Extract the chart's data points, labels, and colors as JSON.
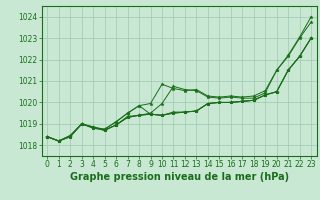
{
  "background_color": "#c8e8d4",
  "grid_color": "#a0c8b0",
  "line_color": "#1a6e1a",
  "marker_color": "#1a6e1a",
  "xlabel": "Graphe pression niveau de la mer (hPa)",
  "xlabel_fontsize": 7,
  "tick_fontsize": 5.5,
  "xlim": [
    -0.5,
    23.5
  ],
  "ylim": [
    1017.5,
    1024.5
  ],
  "yticks": [
    1018,
    1019,
    1020,
    1021,
    1022,
    1023,
    1024
  ],
  "xticks": [
    0,
    1,
    2,
    3,
    4,
    5,
    6,
    7,
    8,
    9,
    10,
    11,
    12,
    13,
    14,
    15,
    16,
    17,
    18,
    19,
    20,
    21,
    22,
    23
  ],
  "series": [
    [
      1018.4,
      1018.2,
      1018.4,
      1019.0,
      1018.8,
      1018.75,
      1019.1,
      1019.5,
      1019.85,
      1019.95,
      1020.85,
      1020.65,
      1020.55,
      1020.6,
      1020.3,
      1020.25,
      1020.3,
      1020.25,
      1020.3,
      1020.55,
      1021.5,
      1022.2,
      1023.05,
      1024.0
    ],
    [
      1018.4,
      1018.2,
      1018.4,
      1019.0,
      1018.8,
      1018.7,
      1018.95,
      1019.3,
      1019.4,
      1019.5,
      1019.95,
      1020.75,
      1020.6,
      1020.55,
      1020.25,
      1020.2,
      1020.25,
      1020.2,
      1020.2,
      1020.45,
      1021.5,
      1022.15,
      1023.0,
      1023.75
    ],
    [
      1018.4,
      1018.2,
      1018.45,
      1019.0,
      1018.85,
      1018.75,
      1019.1,
      1019.5,
      1019.85,
      1019.45,
      1019.4,
      1019.5,
      1019.55,
      1019.6,
      1019.95,
      1020.0,
      1020.0,
      1020.05,
      1020.1,
      1020.35,
      1020.5,
      1021.5,
      1022.15,
      1023.0
    ],
    [
      1018.4,
      1018.2,
      1018.45,
      1019.0,
      1018.85,
      1018.7,
      1018.95,
      1019.3,
      1019.4,
      1019.45,
      1019.4,
      1019.55,
      1019.55,
      1019.6,
      1019.95,
      1020.0,
      1020.0,
      1020.05,
      1020.1,
      1020.35,
      1020.5,
      1021.5,
      1022.15,
      1023.0
    ],
    [
      1018.4,
      1018.2,
      1018.45,
      1019.0,
      1018.85,
      1018.7,
      1018.95,
      1019.35,
      1019.4,
      1019.45,
      1019.4,
      1019.5,
      1019.55,
      1019.6,
      1019.95,
      1020.0,
      1020.0,
      1020.05,
      1020.1,
      1020.35,
      1020.5,
      1021.5,
      1022.15,
      1023.0
    ]
  ]
}
